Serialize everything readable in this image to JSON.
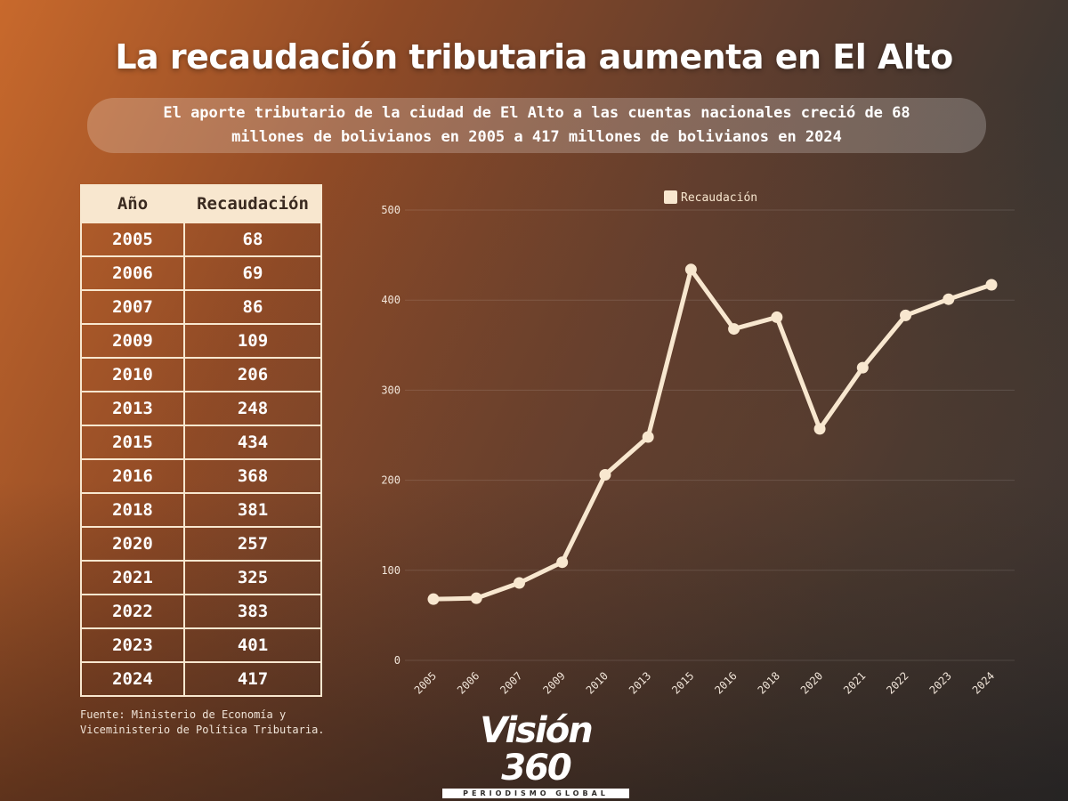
{
  "title": "La recaudación tributaria aumenta en El Alto",
  "subtitle_lines": [
    "El aporte tributario de la ciudad de El Alto a las cuentas nacionales creció de 68",
    "millones de bolivianos en 2005 a 417 millones de bolivianos en 2024"
  ],
  "table": {
    "headers": [
      "Año",
      "Recaudación"
    ],
    "rows": [
      [
        "2005",
        "68"
      ],
      [
        "2006",
        "69"
      ],
      [
        "2007",
        "86"
      ],
      [
        "2009",
        "109"
      ],
      [
        "2010",
        "206"
      ],
      [
        "2013",
        "248"
      ],
      [
        "2015",
        "434"
      ],
      [
        "2016",
        "368"
      ],
      [
        "2018",
        "381"
      ],
      [
        "2020",
        "257"
      ],
      [
        "2021",
        "325"
      ],
      [
        "2022",
        "383"
      ],
      [
        "2023",
        "401"
      ],
      [
        "2024",
        "417"
      ]
    ]
  },
  "source_lines": [
    "Fuente: Ministerio de Economía y",
    "Viceministerio de Política Tributaria."
  ],
  "logo": {
    "name": "Visión 360",
    "tagline": "PERIODISMO GLOBAL"
  },
  "colors": {
    "line": "#f8e7cf",
    "table_header_bg": "#f8e7cf",
    "grid": "rgba(255,255,255,0.12)"
  },
  "chart_data": {
    "type": "line",
    "categories": [
      "2005",
      "2006",
      "2007",
      "2009",
      "2010",
      "2013",
      "2015",
      "2016",
      "2018",
      "2020",
      "2021",
      "2022",
      "2023",
      "2024"
    ],
    "series": [
      {
        "name": "Recaudación",
        "values": [
          68,
          69,
          86,
          109,
          206,
          248,
          434,
          368,
          381,
          257,
          325,
          383,
          401,
          417
        ]
      }
    ],
    "ylim": [
      0,
      500
    ],
    "yticks": [
      0,
      100,
      200,
      300,
      400,
      500
    ],
    "legend_position": "top-center",
    "grid": true
  }
}
